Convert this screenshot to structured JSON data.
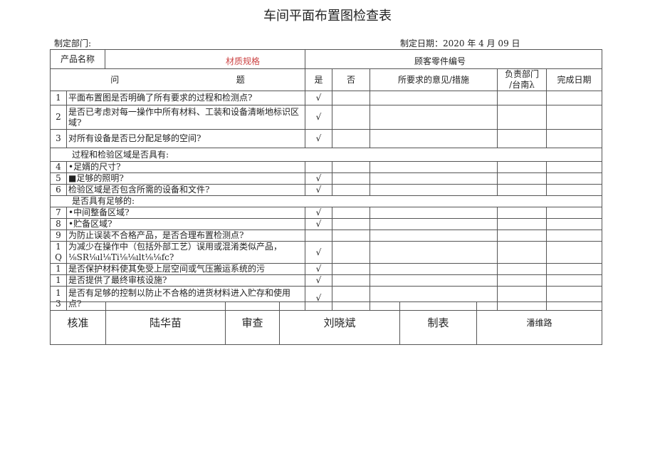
{
  "title": "车间平面布置图检查表",
  "dept_label": "制定部门:",
  "date_label": "制定日期：2020 年 4 月 09 日",
  "product_label": "产品名称",
  "material_label": "材质规格",
  "customer_part_label": "顾客零件编号",
  "headers": {
    "question": "问",
    "question2": "题",
    "yes": "是",
    "no": "否",
    "opinion": "所要求的意见/措施",
    "dept": "负责部门",
    "dept2": "/台南λ",
    "date": "完成日期"
  },
  "rows": [
    {
      "num": "1",
      "q": "平面布置图是否明确了所有要求的过程和检测点?",
      "yes": "√"
    },
    {
      "num": "2",
      "q": "是否已考虑对每一操作中所有材料、工装和设备清晰地标识区域?",
      "yes": "√"
    },
    {
      "num": "3",
      "q": "对所有设备是否已分配足够的空间?",
      "yes": "√"
    },
    {
      "section": "过程和检验区域是否具有:"
    },
    {
      "num": "4",
      "q": "•足婿的尺寸?",
      "yes": ""
    },
    {
      "num": "5",
      "q": "■足够的照明?",
      "yes": "√"
    },
    {
      "num": "6",
      "q": "检验区域是否包含所需的设备和文件?",
      "yes": "√"
    },
    {
      "section": "是否具有足够的:"
    },
    {
      "num": "7",
      "q": "•中间整备区域?",
      "yes": "√"
    },
    {
      "num": "8",
      "q": "•贮备区域?",
      "yes": "√"
    },
    {
      "num": "9",
      "q": "为防止误装不合格产品，是否合理布置检测点?",
      "yes": ""
    },
    {
      "num": "1 Q",
      "q": "为减少在操作中（包括外部工艺）误用或混淆类似产品，⅛SR⅛ıl⅛Ti⅛⅛ılt⅛⅛fc?",
      "yes": "√"
    },
    {
      "num": "1",
      "q": "是否保护材料使其免受上层空间或气压搬运系统的污",
      "yes": "√"
    },
    {
      "num": "1",
      "q": "是否提供了最终审核设施?",
      "yes": "√"
    },
    {
      "num": "1 3",
      "q": "是否有足够的控制以防止不合格的进货材料进入贮存和使用点?",
      "yes": "√"
    }
  ],
  "sign": {
    "approve_label": "核准",
    "approve_name": "陆华苗",
    "review_label": "审查",
    "review_name": "刘晓斌",
    "prepare_label": "制表",
    "prepare_name": "潘维路"
  }
}
